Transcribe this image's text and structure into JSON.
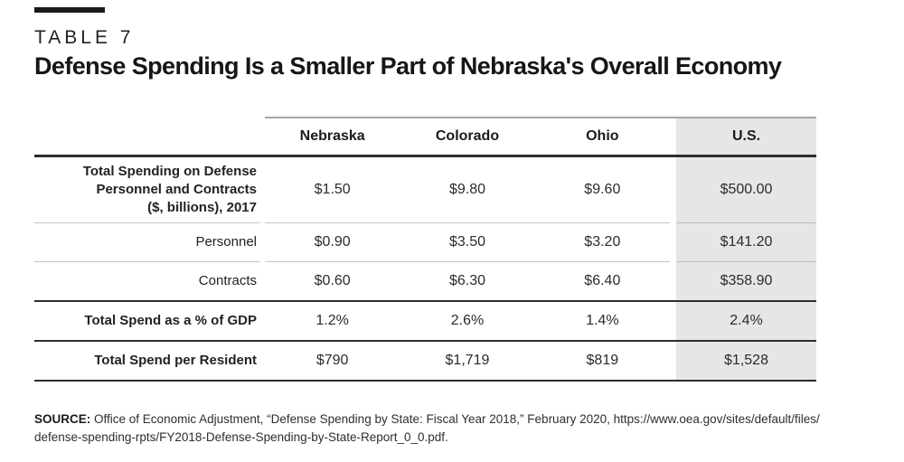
{
  "kicker": "TABLE 7",
  "title": "Defense Spending Is a Smaller Part of Nebraska's Overall Economy",
  "table": {
    "column_headers": [
      "Nebraska",
      "Colorado",
      "Ohio",
      "U.S."
    ],
    "highlighted_column": "U.S.",
    "rows": [
      {
        "label_lines": [
          "Total Spending on Defense",
          "Personnel and Contracts",
          "($, billions), 2017"
        ],
        "values": [
          "$1.50",
          "$9.80",
          "$9.60",
          "$500.00"
        ]
      },
      {
        "label_lines": [
          "Personnel"
        ],
        "values": [
          "$0.90",
          "$3.50",
          "$3.20",
          "$141.20"
        ]
      },
      {
        "label_lines": [
          "Contracts"
        ],
        "values": [
          "$0.60",
          "$6.30",
          "$6.40",
          "$358.90"
        ]
      },
      {
        "label_lines": [
          "Total Spend as a % of GDP"
        ],
        "values": [
          "1.2%",
          "2.6%",
          "1.4%",
          "2.4%"
        ]
      },
      {
        "label_lines": [
          "Total Spend per Resident"
        ],
        "values": [
          "$790",
          "$1,719",
          "$819",
          "$1,528"
        ]
      }
    ]
  },
  "source": {
    "label": "SOURCE:",
    "line1": "Office of Economic Adjustment, “Defense Spending by State: Fiscal Year 2018,” February 2020, https://www.oea.gov/sites/default/files/",
    "line2": "defense-spending-rpts/FY2018-Defense-Spending-by-State-Report_0_0.pdf."
  },
  "colors": {
    "accent_bar": "#1a1a1a",
    "us_column_highlight": "#e6e6e6",
    "rule_dark": "#2d2d2d",
    "rule_light": "#c6c6c6",
    "rule_medium": "#a6a6a6"
  }
}
